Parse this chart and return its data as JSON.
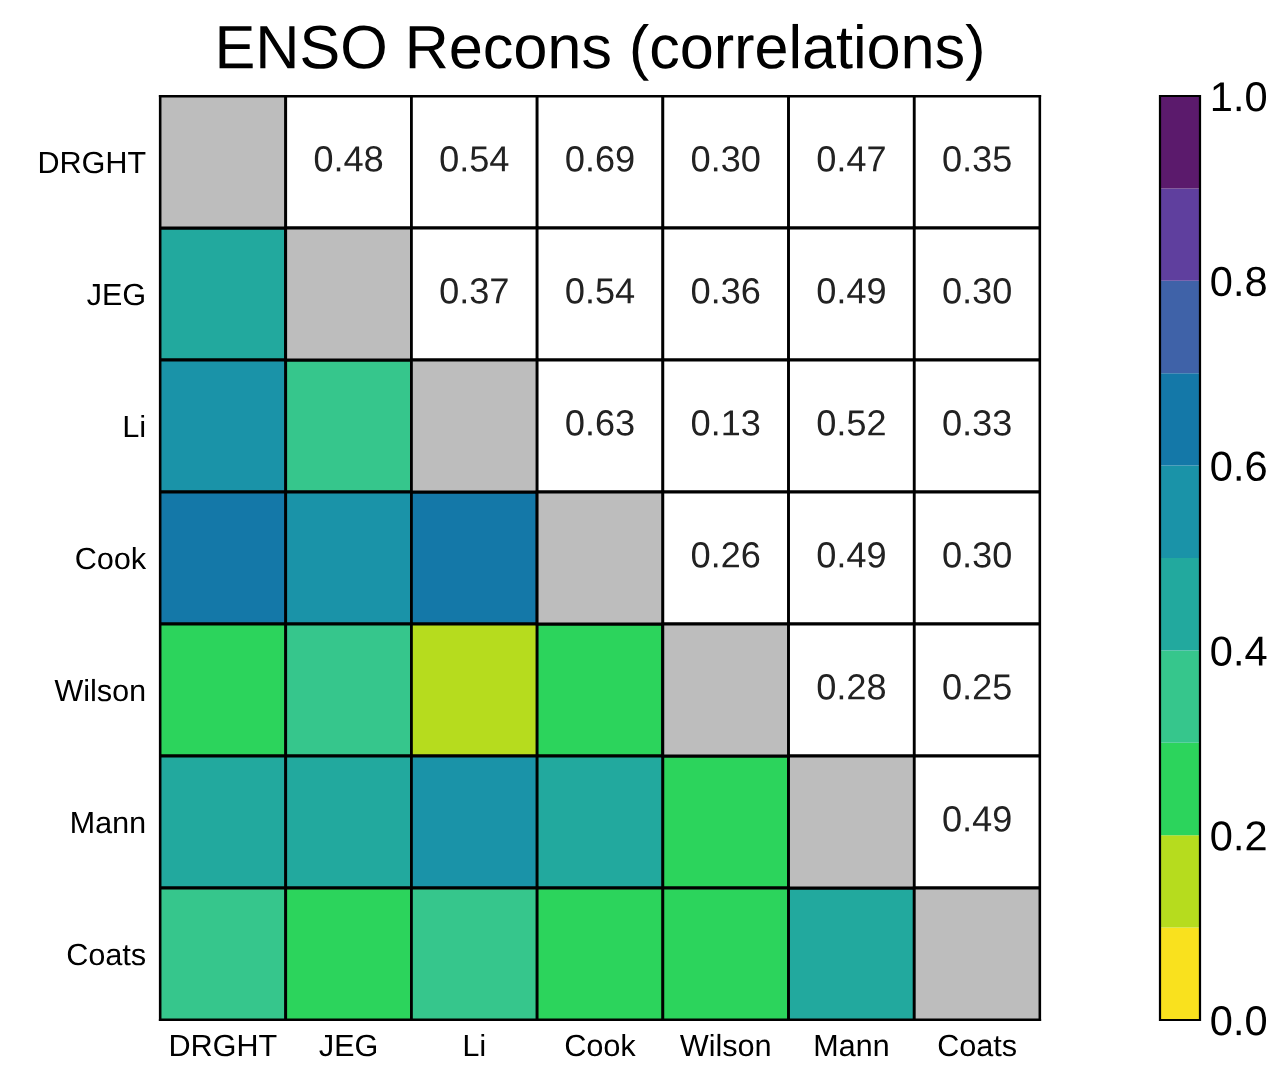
{
  "chart_data": {
    "type": "heatmap",
    "title": "ENSO Recons (correlations)",
    "categories": [
      "DRGHT",
      "JEG",
      "Li",
      "Cook",
      "Wilson",
      "Mann",
      "Coats"
    ],
    "y_categories": [
      "DRGHT",
      "JEG",
      "Li",
      "Cook",
      "Wilson",
      "Mann",
      "Coats"
    ],
    "cells": [
      [
        null,
        null,
        null,
        null,
        null,
        null,
        null
      ],
      [
        0.48,
        null,
        null,
        null,
        null,
        null,
        null
      ],
      [
        0.54,
        0.37,
        null,
        null,
        null,
        null,
        null
      ],
      [
        0.69,
        0.54,
        0.63,
        null,
        null,
        null,
        null
      ],
      [
        0.3,
        0.36,
        0.13,
        0.26,
        null,
        null,
        null
      ],
      [
        0.47,
        0.49,
        0.52,
        0.49,
        0.28,
        null,
        null
      ],
      [
        0.35,
        0.3,
        0.33,
        0.3,
        0.25,
        0.49,
        null
      ]
    ],
    "cell_labels": [
      [
        null,
        "0.48",
        "0.54",
        "0.69",
        "0.30",
        "0.47",
        "0.35"
      ],
      [
        null,
        null,
        "0.37",
        "0.54",
        "0.36",
        "0.49",
        "0.30"
      ],
      [
        null,
        null,
        null,
        "0.63",
        "0.13",
        "0.52",
        "0.33"
      ],
      [
        null,
        null,
        null,
        null,
        "0.26",
        "0.49",
        "0.30"
      ],
      [
        null,
        null,
        null,
        null,
        null,
        "0.28",
        "0.25"
      ],
      [
        null,
        null,
        null,
        null,
        null,
        null,
        "0.49"
      ],
      [
        null,
        null,
        null,
        null,
        null,
        null,
        null
      ]
    ],
    "clim": [
      0,
      1
    ],
    "cticks": [
      {
        "value": 0,
        "label": "0.0"
      },
      {
        "value": 0.2,
        "label": "0.2"
      },
      {
        "value": 0.4,
        "label": "0.4"
      },
      {
        "value": 0.6,
        "label": "0.6"
      },
      {
        "value": 0.8,
        "label": "0.8"
      },
      {
        "value": 1,
        "label": "1.0"
      }
    ]
  }
}
